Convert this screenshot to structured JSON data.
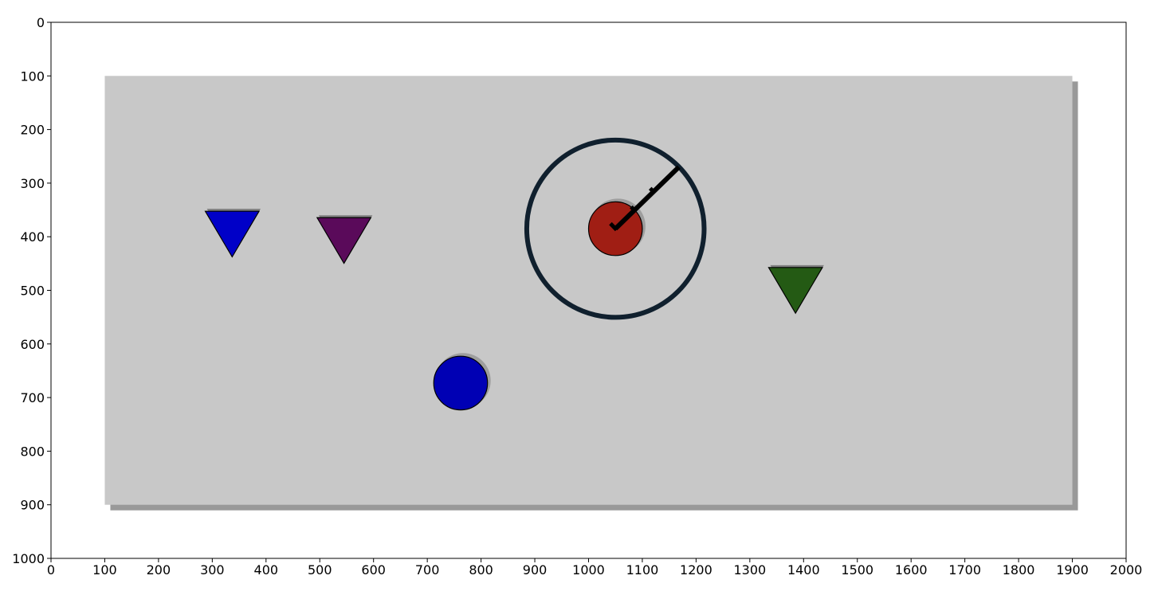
{
  "chart_data": {
    "type": "scatter",
    "xlim": [
      0,
      2000
    ],
    "ylim": [
      0,
      1000
    ],
    "y_inverted": true,
    "grid": false,
    "x_ticks": [
      0,
      100,
      200,
      300,
      400,
      500,
      600,
      700,
      800,
      900,
      1000,
      1100,
      1200,
      1300,
      1400,
      1500,
      1600,
      1700,
      1800,
      1900,
      2000
    ],
    "y_ticks": [
      0,
      100,
      200,
      300,
      400,
      500,
      600,
      700,
      800,
      900,
      1000
    ],
    "x_tick_labels": [
      "0",
      "100",
      "200",
      "300",
      "400",
      "500",
      "600",
      "700",
      "800",
      "900",
      "1000",
      "1100",
      "1200",
      "1300",
      "1400",
      "1500",
      "1600",
      "1700",
      "1800",
      "1900",
      "2000"
    ],
    "y_tick_labels": [
      "0",
      "100",
      "200",
      "300",
      "400",
      "500",
      "600",
      "700",
      "800",
      "900",
      "1000"
    ],
    "arena": {
      "x0": 100,
      "y0": 100,
      "x1": 1900,
      "y1": 900,
      "color": "#c8c8c8",
      "shadow_color": "#999999"
    },
    "objects": [
      {
        "shape": "triangle-down",
        "x": 337,
        "y": 395,
        "size": 50,
        "color": "#0000c8"
      },
      {
        "shape": "triangle-down",
        "x": 545,
        "y": 407,
        "size": 50,
        "color": "#5a0a5a"
      },
      {
        "shape": "triangle-down",
        "x": 1385,
        "y": 500,
        "size": 50,
        "color": "#245a14"
      },
      {
        "shape": "circle",
        "x": 762,
        "y": 673,
        "r": 50,
        "color": "#0000b4"
      },
      {
        "shape": "circle",
        "x": 1050,
        "y": 385,
        "r": 50,
        "color": "#a01e14"
      }
    ],
    "agent": {
      "x": 1050,
      "y": 385,
      "ring_radius": 165,
      "ring_color": "#10202e",
      "pointer_end": {
        "x": 1168,
        "y": 270
      },
      "pointer_color": "#000000"
    }
  }
}
